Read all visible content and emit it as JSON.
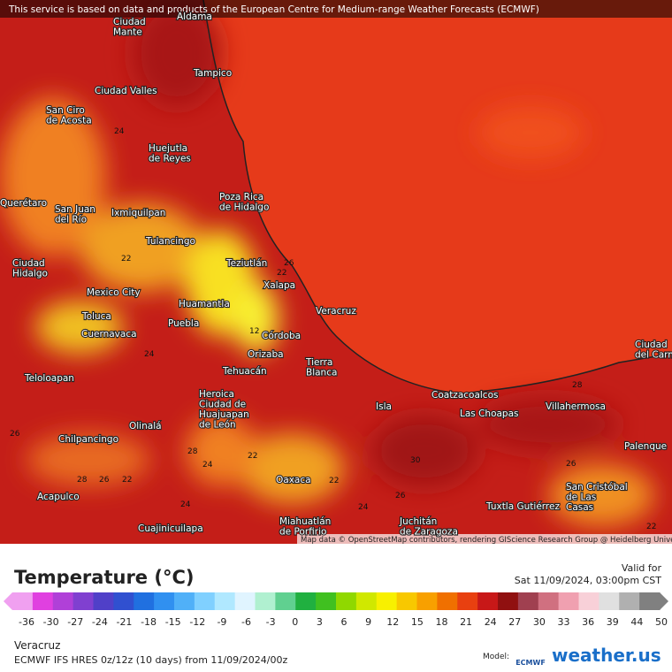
{
  "header": {
    "notice": "This service is based on data and products of the European Centre for Medium-range Weather Forecasts (ECMWF)"
  },
  "map": {
    "attribution": "Map data © OpenStreetMap contributors, rendering GIScience Research Group @ Heidelberg University",
    "cities": [
      {
        "lines": [
          "Aldama"
        ]
      },
      {
        "lines": [
          "Ciudad",
          "Mante"
        ]
      },
      {
        "lines": [
          "Tampico"
        ]
      },
      {
        "lines": [
          "Ciudad Valles"
        ]
      },
      {
        "lines": [
          "San Ciro",
          "de Acosta"
        ]
      },
      {
        "lines": [
          "Huejutla",
          "de Reyes"
        ]
      },
      {
        "lines": [
          "Poza Rica",
          "de Hidalgo"
        ]
      },
      {
        "lines": [
          "Querétaro"
        ]
      },
      {
        "lines": [
          "San Juan",
          "del Río"
        ]
      },
      {
        "lines": [
          "Ixmiquilpan"
        ]
      },
      {
        "lines": [
          "Tulancingo"
        ]
      },
      {
        "lines": [
          "Ciudad",
          "Hidalgo"
        ]
      },
      {
        "lines": [
          "Teziutlán"
        ]
      },
      {
        "lines": [
          "Xalapa"
        ]
      },
      {
        "lines": [
          "Mexico City"
        ]
      },
      {
        "lines": [
          "Huamantla"
        ]
      },
      {
        "lines": [
          "Toluca"
        ]
      },
      {
        "lines": [
          "Veracruz"
        ]
      },
      {
        "lines": [
          "Puebla"
        ]
      },
      {
        "lines": [
          "Cuernavaca"
        ]
      },
      {
        "lines": [
          "Córdoba"
        ]
      },
      {
        "lines": [
          "Orizaba"
        ]
      },
      {
        "lines": [
          "Tierra",
          "Blanca"
        ]
      },
      {
        "lines": [
          "Tehuacán"
        ]
      },
      {
        "lines": [
          "Teloloapan"
        ]
      },
      {
        "lines": [
          "Heroica",
          "Ciudad de",
          "Huajuapan",
          "de León"
        ]
      },
      {
        "lines": [
          "Coatzacoalcos"
        ]
      },
      {
        "lines": [
          "Isla"
        ]
      },
      {
        "lines": [
          "Las Choapas"
        ]
      },
      {
        "lines": [
          "Villahermosa"
        ]
      },
      {
        "lines": [
          "Ciudad",
          "del Carmen"
        ]
      },
      {
        "lines": [
          "Olinalá"
        ]
      },
      {
        "lines": [
          "Chilpancingo"
        ]
      },
      {
        "lines": [
          "Palenque"
        ]
      },
      {
        "lines": [
          "Oaxaca"
        ]
      },
      {
        "lines": [
          "San Cristóbal",
          "de Las",
          "Casas"
        ]
      },
      {
        "lines": [
          "Acapulco"
        ]
      },
      {
        "lines": [
          "Tuxtla Gutiérrez"
        ]
      },
      {
        "lines": [
          "Miahuatlán",
          "de Porfirio"
        ]
      },
      {
        "lines": [
          "Juchitán",
          "de Zaragoza"
        ]
      },
      {
        "lines": [
          "Cuajinicuilapa"
        ]
      }
    ],
    "contour_labels": [
      24,
      22,
      26,
      22,
      12,
      24,
      28,
      26,
      28,
      24,
      22,
      30,
      26,
      28,
      26,
      22,
      22,
      26,
      24,
      24,
      22
    ]
  },
  "legend": {
    "title": "Temperature (°C)",
    "valid_label": "Valid for",
    "valid_time": "Sat 11/09/2024, 03:00pm CST",
    "ticks": [
      -36,
      -30,
      -27,
      -24,
      -21,
      -18,
      -15,
      -12,
      -9,
      -6,
      -3,
      0,
      3,
      6,
      9,
      12,
      15,
      18,
      21,
      24,
      27,
      30,
      33,
      36,
      39,
      44,
      50
    ],
    "colors": [
      "#f0a0f0",
      "#e040e0",
      "#b040d8",
      "#8040d0",
      "#5040c8",
      "#3050d0",
      "#2070e0",
      "#3090f0",
      "#50b0f8",
      "#80d0ff",
      "#b0e8ff",
      "#e0f4ff",
      "#b0f0d0",
      "#60d090",
      "#20b040",
      "#40c020",
      "#90d800",
      "#d0e800",
      "#f8f000",
      "#f8c800",
      "#f8a000",
      "#f07000",
      "#e84010",
      "#c81818",
      "#901010",
      "#a04050",
      "#d07080",
      "#f0a0b0",
      "#f8d0d8",
      "#e0e0e0",
      "#b0b0b0",
      "#808080"
    ]
  },
  "footer": {
    "location": "Veracruz",
    "model_run": "ECMWF IFS HRES 0z/12z (10 days) from  11/09/2024/00z",
    "model_label": "Model:",
    "model_name": "ECMWF",
    "brand": "weather.us"
  }
}
